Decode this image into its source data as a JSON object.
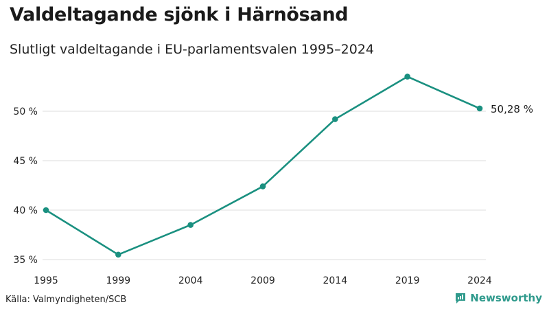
{
  "header": {
    "title": "Valdeltagande sjönk i Härnösand",
    "subtitle": "Slutligt valdeltagande i EU-parlamentsvalen 1995–2024"
  },
  "footer": {
    "source": "Källa: Valmyndigheten/SCB",
    "brand": "Newsworthy"
  },
  "colors": {
    "line": "#1a9080",
    "grid": "#dddddd",
    "brand": "#2f9a8c"
  },
  "chart_data": {
    "type": "line",
    "x": [
      "1995",
      "1999",
      "2004",
      "2009",
      "2014",
      "2019",
      "2024"
    ],
    "series": [
      {
        "values": [
          40.0,
          35.5,
          38.5,
          42.4,
          49.2,
          53.5,
          50.28
        ]
      }
    ],
    "yticks": [
      35,
      40,
      45,
      50
    ],
    "ytick_labels": [
      "35 %",
      "40 %",
      "45 %",
      "50 %"
    ],
    "ylim": [
      35,
      55
    ],
    "end_label": "50,28 %",
    "grid": true
  }
}
